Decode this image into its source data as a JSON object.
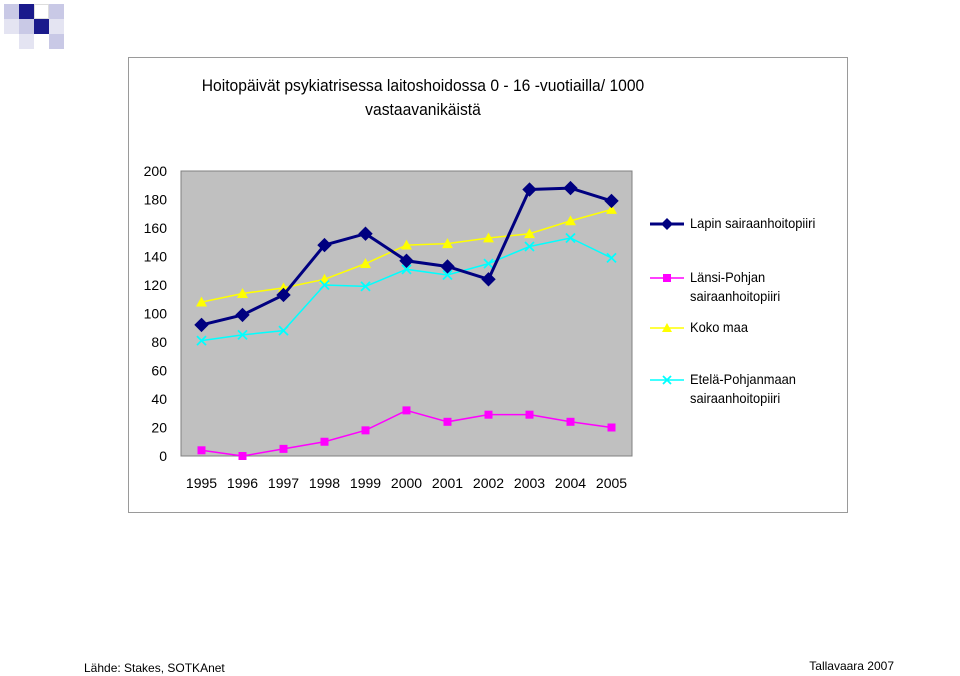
{
  "footer": {
    "source": "Lähde: Stakes, SOTKAnet",
    "credit": "Tallavaara 2007"
  },
  "chart_data": {
    "type": "line",
    "title": "Hoitopäivät psykiatrisessa laitoshoidossa 0 - 16 -vuotiailla/ 1000 vastaavanikäistä",
    "title_lines": [
      "Hoitopäivät psykiatrisessa laitoshoidossa 0 - 16 -vuotiailla/ 1000",
      "vastaavanikäistä"
    ],
    "xlabel": "",
    "ylabel": "",
    "categories": [
      "1995",
      "1996",
      "1997",
      "1998",
      "1999",
      "2000",
      "2001",
      "2002",
      "2003",
      "2004",
      "2005"
    ],
    "ylim": [
      0,
      200
    ],
    "yticks": [
      0,
      20,
      40,
      60,
      80,
      100,
      120,
      140,
      160,
      180,
      200
    ],
    "grid": false,
    "legend_position": "right",
    "series": [
      {
        "name": "Lapin sairaanhoitopiiri",
        "color": "#000080",
        "marker": "diamond",
        "values": [
          92,
          99,
          113,
          148,
          156,
          137,
          133,
          124,
          187,
          188,
          179
        ]
      },
      {
        "name": "Länsi-Pohjan sairaanhoitopiiri",
        "color": "#FF00FF",
        "marker": "square",
        "values": [
          4,
          0,
          5,
          10,
          18,
          32,
          24,
          29,
          29,
          24,
          20
        ]
      },
      {
        "name": "Koko maa",
        "color": "#FFFF00",
        "marker": "triangle",
        "values": [
          108,
          114,
          118,
          124,
          135,
          148,
          149,
          153,
          156,
          165,
          173
        ]
      },
      {
        "name": "Etelä-Pohjanmaan sairaanhoitopiiri",
        "color": "#00FFFF",
        "marker": "x",
        "values": [
          81,
          85,
          88,
          120,
          119,
          131,
          127,
          135,
          147,
          153,
          139
        ]
      }
    ],
    "legend_labels": [
      "Lapin sairaanhoitopiiri",
      "Länsi-Pohjan\nsairaanhoitopiiri",
      "Koko maa",
      "Etelä-Pohjanmaan\nsairaanhoitopiiri"
    ],
    "plot_area_color": "#C0C0C0"
  }
}
